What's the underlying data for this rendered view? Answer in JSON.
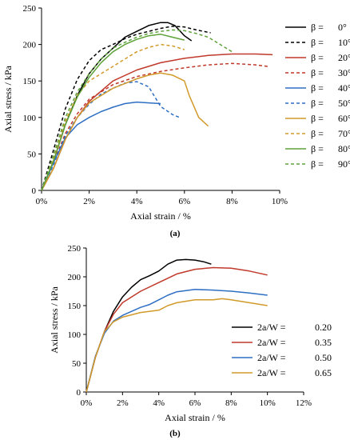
{
  "chart_data": [
    {
      "type": "line",
      "panel_label": "(a)",
      "xlabel": "Axial strain / %",
      "ylabel": "Axial stress / kPa",
      "xlim": [
        0,
        10
      ],
      "ylim": [
        0,
        250
      ],
      "x_ticks": [
        0,
        2,
        4,
        6,
        8,
        10
      ],
      "x_tick_labels": [
        "0%",
        "2%",
        "4%",
        "6%",
        "8%",
        "10%"
      ],
      "y_ticks": [
        0,
        50,
        100,
        150,
        200,
        250
      ],
      "y_tick_labels": [
        "0",
        "50",
        "100",
        "150",
        "200",
        "250"
      ],
      "grid": false,
      "legend_position": "right",
      "legend_prefix": "β = ",
      "series": [
        {
          "name": "0°",
          "label": "0°",
          "color": "#000000",
          "dash": "solid",
          "x": [
            0,
            0.5,
            1,
            1.5,
            2,
            2.5,
            3,
            3.5,
            4,
            4.5,
            5,
            5.3,
            5.6,
            6.0,
            6.3
          ],
          "y": [
            0,
            40,
            90,
            130,
            160,
            180,
            195,
            210,
            218,
            226,
            230,
            230,
            226,
            212,
            205
          ]
        },
        {
          "name": "10°",
          "label": "10°",
          "color": "#000000",
          "dash": "dashed",
          "x": [
            0,
            0.5,
            1,
            1.5,
            2,
            2.5,
            3,
            3.5,
            4,
            4.5,
            5,
            5.5,
            6,
            6.5,
            7.1
          ],
          "y": [
            0,
            55,
            112,
            152,
            178,
            193,
            200,
            208,
            214,
            218,
            222,
            225,
            224,
            220,
            216
          ]
        },
        {
          "name": "20°",
          "label": "20°",
          "color": "#c0392b",
          "dash": "solid",
          "x": [
            0,
            0.5,
            1,
            1.5,
            2,
            3,
            4,
            5,
            6,
            7,
            8,
            9,
            9.7
          ],
          "y": [
            0,
            30,
            70,
            100,
            122,
            150,
            165,
            175,
            181,
            185,
            187,
            187,
            186
          ]
        },
        {
          "name": "30°",
          "label": "30°",
          "color": "#c0392b",
          "dash": "dashed",
          "x": [
            0,
            0.5,
            1,
            1.5,
            2,
            3,
            4,
            5,
            6,
            7,
            8,
            9,
            9.5
          ],
          "y": [
            0,
            38,
            78,
            105,
            125,
            145,
            156,
            163,
            168,
            172,
            174,
            172,
            170
          ]
        },
        {
          "name": "40°",
          "label": "40°",
          "color": "#2e6fc4",
          "dash": "solid",
          "x": [
            0,
            0.5,
            1,
            1.5,
            2,
            2.5,
            3,
            3.5,
            4,
            4.5,
            5
          ],
          "y": [
            0,
            38,
            72,
            90,
            100,
            108,
            114,
            119,
            121,
            120,
            119
          ]
        },
        {
          "name": "50°",
          "label": "50°",
          "color": "#2e6fc4",
          "dash": "dashed",
          "x": [
            0,
            0.5,
            1,
            1.5,
            2,
            2.5,
            3,
            3.5,
            4,
            4.5,
            5,
            5.5,
            5.8
          ],
          "y": [
            0,
            35,
            75,
            100,
            118,
            132,
            140,
            147,
            149,
            142,
            115,
            104,
            100
          ]
        },
        {
          "name": "60°",
          "label": "60°",
          "color": "#d19a2a",
          "dash": "solid",
          "x": [
            0,
            0.5,
            1,
            1.5,
            2,
            3,
            4,
            4.5,
            5,
            5.5,
            6,
            6.2,
            6.6,
            7.0
          ],
          "y": [
            0,
            30,
            70,
            100,
            120,
            140,
            153,
            158,
            161,
            158,
            150,
            130,
            100,
            88
          ]
        },
        {
          "name": "70°",
          "label": "70°",
          "color": "#d19a2a",
          "dash": "dashed",
          "x": [
            0,
            0.5,
            1,
            1.5,
            2,
            2.5,
            3,
            3.5,
            4,
            4.5,
            5,
            5.5,
            6
          ],
          "y": [
            0,
            45,
            95,
            130,
            150,
            160,
            170,
            180,
            190,
            196,
            200,
            198,
            193
          ]
        },
        {
          "name": "80°",
          "label": "80°",
          "color": "#5ea23a",
          "dash": "solid",
          "x": [
            0,
            0.5,
            1,
            1.5,
            2,
            2.5,
            3,
            3.5,
            4,
            4.5,
            5,
            5.5,
            6
          ],
          "y": [
            0,
            40,
            90,
            128,
            155,
            175,
            190,
            200,
            207,
            212,
            214,
            210,
            206
          ]
        },
        {
          "name": "90°",
          "label": "90°",
          "color": "#5ea23a",
          "dash": "dashed",
          "x": [
            0,
            0.5,
            1,
            1.5,
            2,
            2.5,
            3,
            3.5,
            4,
            4.5,
            5,
            5.5,
            6,
            6.5,
            7,
            7.5,
            8
          ],
          "y": [
            0,
            48,
            100,
            135,
            160,
            180,
            195,
            203,
            210,
            215,
            218,
            220,
            219,
            215,
            210,
            200,
            190
          ]
        }
      ]
    },
    {
      "type": "line",
      "panel_label": "(b)",
      "xlabel": "Axial strain / %",
      "ylabel": "Axial stress / kPa",
      "xlim": [
        0,
        12
      ],
      "ylim": [
        0,
        250
      ],
      "x_ticks": [
        0,
        2,
        4,
        6,
        8,
        10,
        12
      ],
      "x_tick_labels": [
        "0%",
        "2%",
        "4%",
        "6%",
        "8%",
        "10%",
        "12%"
      ],
      "y_ticks": [
        0,
        50,
        100,
        150,
        200,
        250
      ],
      "y_tick_labels": [
        "0",
        "50",
        "100",
        "150",
        "200",
        "250"
      ],
      "grid": false,
      "legend_position": "right",
      "legend_prefix": "2a/W = ",
      "series": [
        {
          "name": "0.20",
          "label": "0.20",
          "color": "#000000",
          "dash": "solid",
          "x": [
            0,
            0.5,
            1,
            1.5,
            2,
            2.5,
            3,
            3.5,
            4,
            4.5,
            5,
            5.5,
            6,
            6.5,
            6.9
          ],
          "y": [
            0,
            60,
            105,
            140,
            165,
            182,
            195,
            202,
            210,
            222,
            229,
            230,
            229,
            226,
            222
          ]
        },
        {
          "name": "0.35",
          "label": "0.35",
          "color": "#c0392b",
          "dash": "solid",
          "x": [
            0,
            0.5,
            1,
            1.5,
            2,
            3,
            4,
            5,
            6,
            7,
            8,
            9,
            10
          ],
          "y": [
            0,
            60,
            105,
            135,
            155,
            175,
            190,
            205,
            213,
            216,
            215,
            210,
            203
          ]
        },
        {
          "name": "0.50",
          "label": "0.50",
          "color": "#2e6fc4",
          "dash": "solid",
          "x": [
            0,
            0.5,
            1,
            1.5,
            2,
            2.5,
            3,
            3.5,
            4,
            4.5,
            5,
            6,
            7,
            8,
            9,
            10
          ],
          "y": [
            0,
            62,
            102,
            123,
            133,
            140,
            147,
            152,
            160,
            168,
            174,
            178,
            177,
            175,
            172,
            168
          ]
        },
        {
          "name": "0.65",
          "label": "0.65",
          "color": "#d19a2a",
          "dash": "solid",
          "x": [
            0,
            0.5,
            1,
            1.5,
            2,
            3,
            4,
            4.5,
            5,
            6,
            7,
            7.5,
            8,
            9,
            10
          ],
          "y": [
            0,
            60,
            105,
            122,
            130,
            138,
            142,
            150,
            155,
            160,
            160,
            162,
            160,
            155,
            150
          ]
        }
      ]
    }
  ]
}
